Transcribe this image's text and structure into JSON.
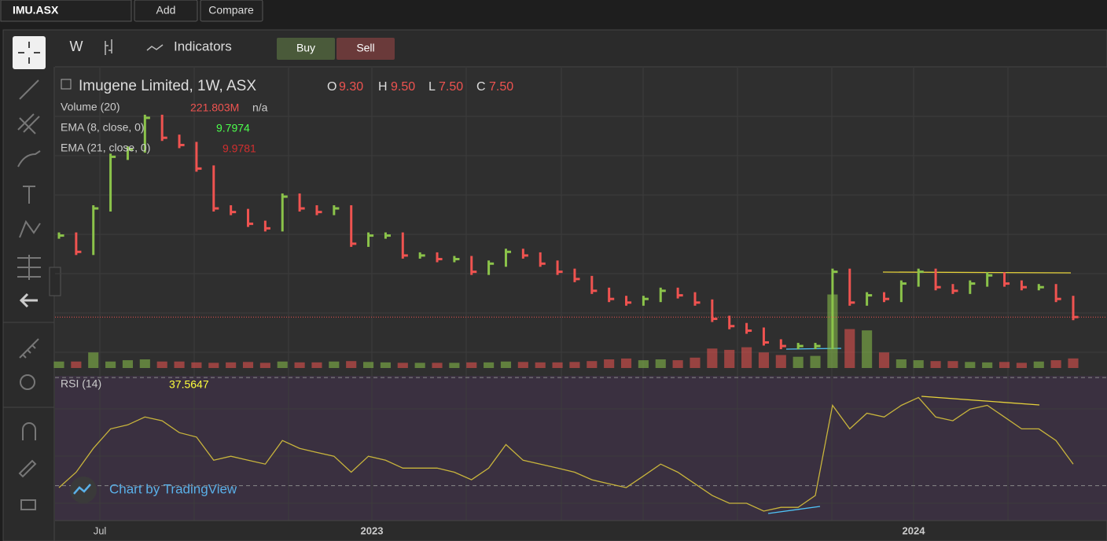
{
  "topbar": {
    "symbol": "IMU.ASX",
    "add": "Add",
    "compare": "Compare"
  },
  "toolbar": {
    "interval": "W",
    "indicators": "Indicators",
    "buy": "Buy",
    "sell": "Sell"
  },
  "legend": {
    "title": "Imugene Limited, 1W, ASX",
    "o_label": "O",
    "o": "9.30",
    "h_label": "H",
    "h": "9.50",
    "l_label": "L",
    "l": "7.50",
    "c_label": "C",
    "c": "7.50",
    "volume": "Volume (20)",
    "volume_value": "221.803M",
    "volume_ma": "n/a",
    "ema8": "EMA (8, close, 0)",
    "ema8_value": "9.7974",
    "ema21": "EMA (21, close, 0)",
    "ema21_value": "9.9781",
    "rsi": "RSI (14)",
    "rsi_value": "37.5647"
  },
  "watermark": "Chart by TradingView",
  "chart_data": {
    "type": "price-bars",
    "up_color": "#8bc34a",
    "down_color": "#ef5350",
    "time_labels": [
      "Jul",
      "2023",
      "2024"
    ],
    "closes": [
      16.5,
      14.7,
      19.5,
      25.2,
      26.0,
      29.5,
      27.3,
      26.5,
      23.9,
      19.5,
      19.1,
      17.8,
      17.3,
      20.8,
      19.5,
      19.1,
      19.5,
      15.6,
      16.5,
      16.5,
      14.3,
      14.3,
      13.9,
      13.9,
      12.5,
      13.4,
      14.7,
      14.3,
      13.4,
      12.5,
      11.7,
      10.4,
      9.5,
      9.1,
      9.5,
      10.4,
      9.9,
      9.1,
      7.3,
      6.5,
      6.0,
      4.7,
      4.3,
      4.3,
      4.3,
      12.5,
      9.1,
      9.9,
      9.5,
      11.2,
      12.5,
      10.8,
      10.4,
      11.2,
      12.1,
      11.2,
      10.8,
      10.8,
      9.5,
      7.5
    ],
    "ylim": [
      1.7,
      34.7
    ],
    "volume": {
      "values": [
        150,
        150,
        360,
        150,
        180,
        200,
        150,
        150,
        130,
        120,
        130,
        140,
        120,
        150,
        130,
        130,
        150,
        160,
        140,
        130,
        120,
        120,
        120,
        120,
        130,
        130,
        150,
        140,
        130,
        130,
        140,
        160,
        200,
        220,
        180,
        200,
        180,
        240,
        450,
        420,
        480,
        360,
        300,
        260,
        280,
        1700,
        900,
        870,
        360,
        200,
        180,
        160,
        160,
        140,
        130,
        140,
        120,
        150,
        180,
        221.803
      ],
      "ylim": [
        0,
        2000
      ]
    },
    "rsi": {
      "values": [
        29.3,
        35,
        43.8,
        51,
        52.5,
        55.4,
        54,
        49.6,
        48,
        39.4,
        40.9,
        39.4,
        38,
        46.7,
        43.8,
        42.3,
        40.9,
        35,
        40.9,
        39.4,
        36.5,
        36.5,
        36.5,
        35,
        32.2,
        36.5,
        45.2,
        39.4,
        38,
        36.5,
        35,
        32.2,
        30.7,
        29.3,
        33.6,
        38,
        35,
        30.7,
        26.4,
        23.5,
        23.5,
        20.6,
        22,
        22,
        26.4,
        59.7,
        51,
        56.8,
        55.4,
        59.7,
        62.6,
        55.4,
        54,
        58.3,
        59.7,
        55.4,
        51,
        51,
        46.7,
        38
      ],
      "ylim": [
        17.7,
        70.6
      ],
      "bands": [
        30,
        70
      ],
      "color": "#c8b43c"
    }
  }
}
